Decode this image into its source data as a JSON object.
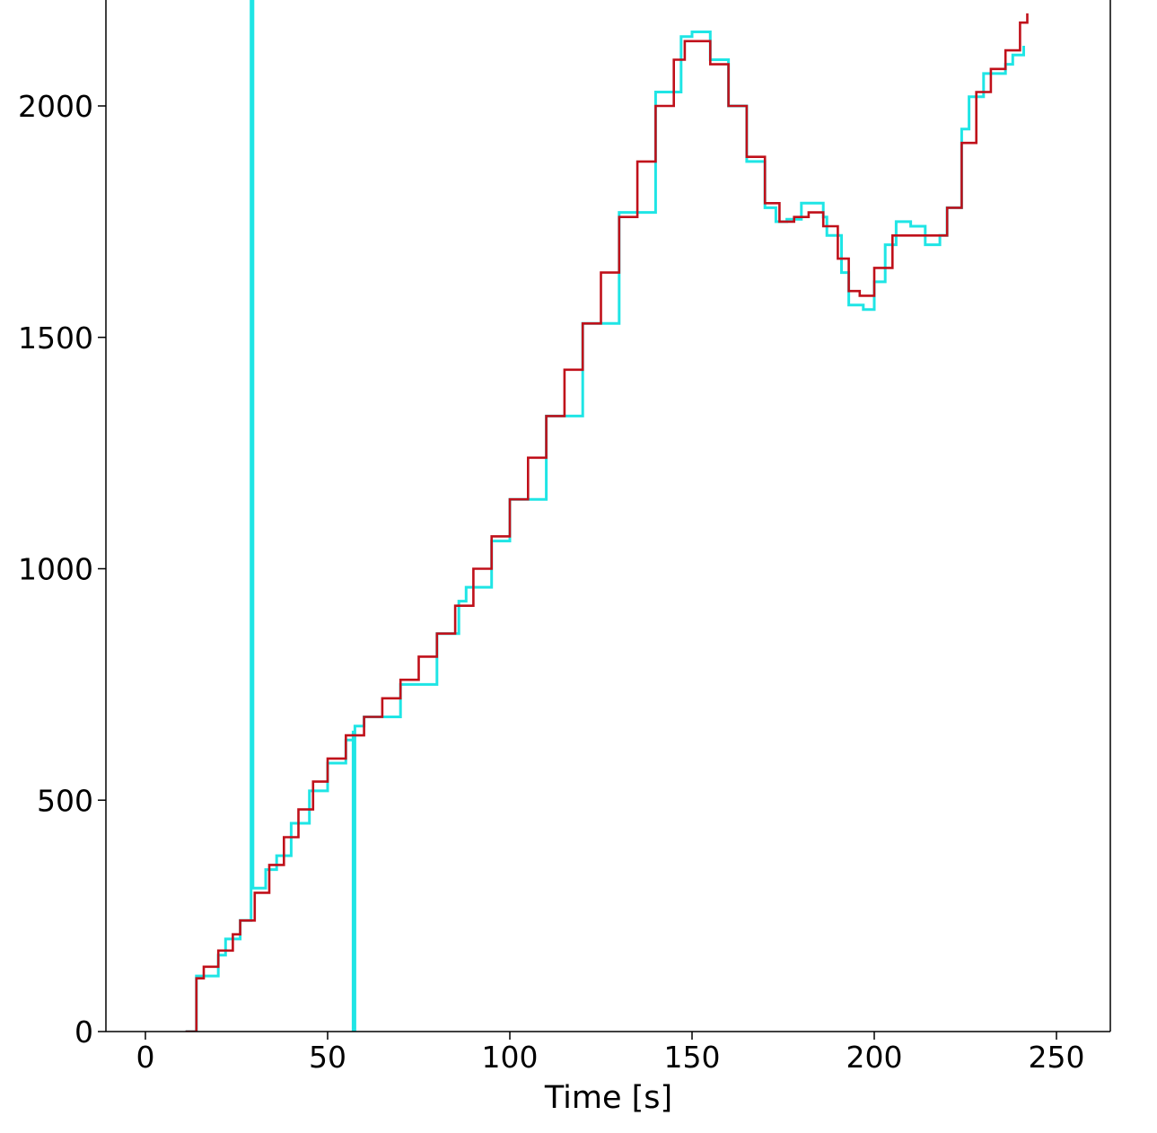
{
  "chart_data": {
    "type": "line",
    "title": "",
    "xlabel": "Time [s]",
    "ylabel": "",
    "xlim": [
      -10,
      265
    ],
    "ylim": [
      0,
      2230
    ],
    "x_ticks": [
      0,
      50,
      100,
      150,
      200,
      250
    ],
    "y_ticks": [
      0,
      500,
      1000,
      1500,
      2000
    ],
    "grid": false,
    "legend": "none",
    "step": true,
    "series": [
      {
        "color": "#1fe5e5",
        "points": [
          [
            11,
            0
          ],
          [
            14,
            0
          ],
          [
            14,
            120
          ],
          [
            20,
            165
          ],
          [
            22,
            200
          ],
          [
            26,
            200
          ],
          [
            26,
            240
          ],
          [
            29,
            290
          ],
          [
            29,
            2230
          ],
          [
            29.5,
            2230
          ],
          [
            29.5,
            310
          ],
          [
            33,
            350
          ],
          [
            36,
            380
          ],
          [
            40,
            380
          ],
          [
            40,
            450
          ],
          [
            45,
            520
          ],
          [
            50,
            580
          ],
          [
            55,
            630
          ],
          [
            57,
            650
          ],
          [
            57,
            0
          ],
          [
            57.5,
            0
          ],
          [
            57.5,
            660
          ],
          [
            60,
            680
          ],
          [
            70,
            750
          ],
          [
            80,
            860
          ],
          [
            86,
            930
          ],
          [
            88,
            960
          ],
          [
            95,
            1060
          ],
          [
            100,
            1150
          ],
          [
            110,
            1330
          ],
          [
            120,
            1530
          ],
          [
            130,
            1770
          ],
          [
            140,
            2030
          ],
          [
            147,
            2150
          ],
          [
            150,
            2160
          ],
          [
            155,
            2100
          ],
          [
            160,
            2000
          ],
          [
            165,
            1880
          ],
          [
            170,
            1780
          ],
          [
            173,
            1750
          ],
          [
            176,
            1755
          ],
          [
            180,
            1790
          ],
          [
            183,
            1790
          ],
          [
            186,
            1760
          ],
          [
            187,
            1720
          ],
          [
            190,
            1720
          ],
          [
            191,
            1640
          ],
          [
            193,
            1570
          ],
          [
            197,
            1560
          ],
          [
            200,
            1620
          ],
          [
            203,
            1700
          ],
          [
            206,
            1720
          ],
          [
            206,
            1750
          ],
          [
            210,
            1740
          ],
          [
            214,
            1700
          ],
          [
            218,
            1720
          ],
          [
            220,
            1780
          ],
          [
            224,
            1950
          ],
          [
            226,
            2020
          ],
          [
            230,
            2070
          ],
          [
            236,
            2090
          ],
          [
            238,
            2110
          ],
          [
            241,
            2130
          ]
        ]
      },
      {
        "color": "#c0101a",
        "points": [
          [
            11,
            0
          ],
          [
            14,
            0
          ],
          [
            14,
            115
          ],
          [
            16,
            140
          ],
          [
            20,
            175
          ],
          [
            24,
            210
          ],
          [
            26,
            240
          ],
          [
            30,
            300
          ],
          [
            34,
            360
          ],
          [
            38,
            420
          ],
          [
            42,
            480
          ],
          [
            46,
            540
          ],
          [
            50,
            590
          ],
          [
            55,
            640
          ],
          [
            60,
            680
          ],
          [
            65,
            720
          ],
          [
            70,
            760
          ],
          [
            75,
            810
          ],
          [
            80,
            860
          ],
          [
            85,
            920
          ],
          [
            90,
            1000
          ],
          [
            95,
            1070
          ],
          [
            100,
            1150
          ],
          [
            105,
            1240
          ],
          [
            110,
            1330
          ],
          [
            115,
            1430
          ],
          [
            120,
            1530
          ],
          [
            125,
            1640
          ],
          [
            130,
            1760
          ],
          [
            135,
            1880
          ],
          [
            140,
            2000
          ],
          [
            145,
            2100
          ],
          [
            148,
            2140
          ],
          [
            150,
            2140
          ],
          [
            155,
            2090
          ],
          [
            160,
            2000
          ],
          [
            165,
            1890
          ],
          [
            170,
            1790
          ],
          [
            174,
            1750
          ],
          [
            178,
            1760
          ],
          [
            182,
            1770
          ],
          [
            186,
            1740
          ],
          [
            190,
            1670
          ],
          [
            193,
            1600
          ],
          [
            196,
            1590
          ],
          [
            200,
            1650
          ],
          [
            205,
            1720
          ],
          [
            210,
            1720
          ],
          [
            215,
            1720
          ],
          [
            220,
            1780
          ],
          [
            224,
            1920
          ],
          [
            228,
            2030
          ],
          [
            232,
            2080
          ],
          [
            236,
            2120
          ],
          [
            240,
            2180
          ],
          [
            242,
            2200
          ]
        ]
      }
    ]
  }
}
